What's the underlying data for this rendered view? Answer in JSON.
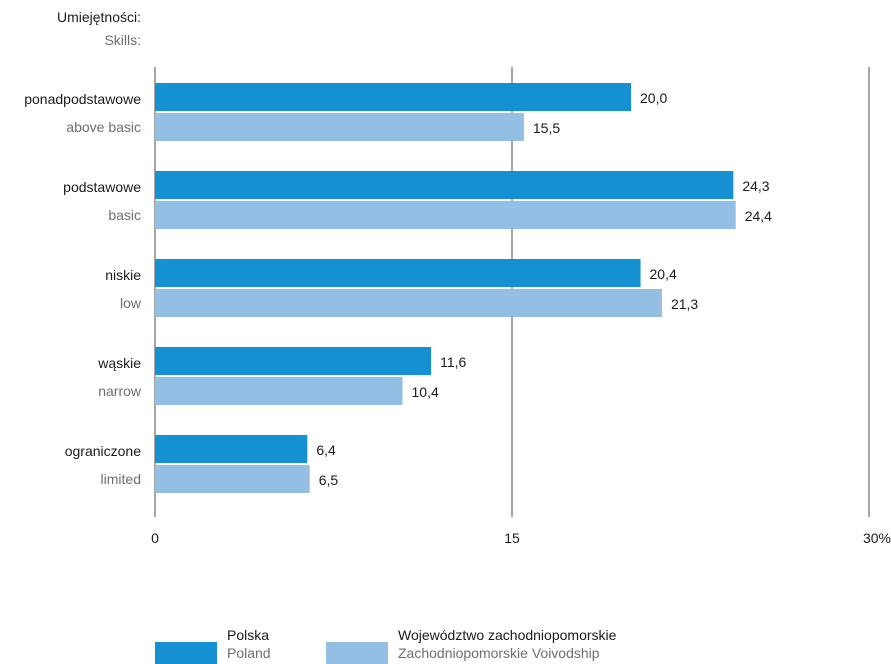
{
  "chart_data": {
    "type": "bar",
    "orientation": "horizontal",
    "axis_title": "Umiejętności:",
    "axis_title_sub": "Skills:",
    "categories": [
      {
        "label": "ponadpodstawowe",
        "label_en": "above basic"
      },
      {
        "label": "podstawowe",
        "label_en": "basic"
      },
      {
        "label": "niskie",
        "label_en": "low"
      },
      {
        "label": "wąskie",
        "label_en": "narrow"
      },
      {
        "label": "ograniczone",
        "label_en": "limited"
      }
    ],
    "series": [
      {
        "name": "Polska",
        "name_en": "Poland",
        "color": "#1591d3",
        "values": [
          20.0,
          24.3,
          20.4,
          11.6,
          6.4
        ],
        "value_labels": [
          "20,0",
          "24,3",
          "20,4",
          "11,6",
          "6,4"
        ]
      },
      {
        "name": "Województwo zachodniopomorskie",
        "name_en": "Zachodniopomorskie Voivodship",
        "color": "#93bfe5",
        "values": [
          15.5,
          24.4,
          21.3,
          10.4,
          6.5
        ],
        "value_labels": [
          "15,5",
          "24,4",
          "21,3",
          "10,4",
          "6,5"
        ]
      }
    ],
    "xlim": [
      0,
      30
    ],
    "xticks": [
      0,
      15,
      30
    ],
    "xtick_labels": [
      "0",
      "15",
      "30%"
    ],
    "grid": true,
    "legend_position": "bottom"
  }
}
